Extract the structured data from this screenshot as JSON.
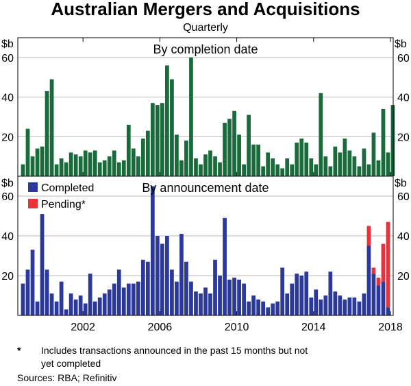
{
  "title": "Australian Mergers and Acquisitions",
  "subtitle": "Quarterly",
  "footnote": {
    "marker": "*",
    "line1": "Includes transactions announced in the past 15 months but not",
    "line2": "yet completed"
  },
  "sources": "Sources: RBA; Refinitiv",
  "colors": {
    "completion": "#1a6b3c",
    "completed": "#2b3a9a",
    "pending": "#e8323c",
    "grid": "#b9b9b9"
  },
  "chart_data": [
    {
      "type": "bar",
      "title": "By completion date",
      "ylabel": "$b",
      "ylim": [
        0,
        70
      ],
      "yticks": [
        20,
        40,
        60
      ],
      "x_start": 1998.75,
      "x_step": 0.25,
      "xticks": [
        2002,
        2006,
        2010,
        2014,
        2018
      ],
      "series": [
        {
          "name": "By completion date",
          "values": [
            6,
            24,
            10,
            14,
            15,
            43,
            49,
            6,
            9,
            7,
            12,
            11,
            10,
            13,
            12,
            13,
            7,
            8,
            10,
            13,
            7,
            8,
            26,
            14,
            10,
            19,
            23,
            37,
            36,
            37,
            56,
            49,
            21,
            8,
            18,
            60,
            9,
            6,
            11,
            13,
            10,
            7,
            27,
            29,
            33,
            21,
            6,
            31,
            16,
            16,
            5,
            12,
            9,
            6,
            4,
            9,
            6,
            17,
            19,
            17,
            9,
            6,
            42,
            10,
            5,
            15,
            12,
            19,
            13,
            10,
            5,
            14,
            6,
            22,
            8,
            34,
            12,
            36
          ]
        }
      ]
    },
    {
      "type": "bar",
      "stacked": true,
      "title": "By announcement date",
      "ylabel": "$b",
      "ylim": [
        0,
        70
      ],
      "yticks": [
        20,
        40,
        60
      ],
      "x_start": 1998.75,
      "x_step": 0.25,
      "xticks": [
        2002,
        2006,
        2010,
        2014,
        2018
      ],
      "legend": [
        "Completed",
        "Pending*"
      ],
      "series": [
        {
          "name": "Completed",
          "values": [
            16,
            23,
            33,
            7,
            51,
            23,
            11,
            7,
            17,
            3,
            11,
            8,
            10,
            6,
            21,
            7,
            9,
            11,
            13,
            16,
            23,
            14,
            16,
            16,
            17,
            28,
            27,
            65,
            40,
            36,
            40,
            23,
            17,
            41,
            27,
            17,
            12,
            11,
            14,
            11,
            28,
            20,
            49,
            18,
            19,
            18,
            16,
            7,
            10,
            8,
            7,
            4,
            6,
            7,
            24,
            11,
            16,
            21,
            20,
            22,
            9,
            13,
            8,
            10,
            22,
            12,
            10,
            8,
            9,
            9,
            7,
            11,
            35,
            21,
            15,
            17,
            4
          ]
        },
        {
          "name": "Pending*",
          "values": [
            0,
            0,
            0,
            0,
            0,
            0,
            0,
            0,
            0,
            0,
            0,
            0,
            0,
            0,
            0,
            0,
            0,
            0,
            0,
            0,
            0,
            0,
            0,
            0,
            0,
            0,
            0,
            0,
            0,
            0,
            0,
            0,
            0,
            0,
            0,
            0,
            0,
            0,
            0,
            0,
            0,
            0,
            0,
            0,
            0,
            0,
            0,
            0,
            0,
            0,
            0,
            0,
            0,
            0,
            0,
            0,
            0,
            0,
            0,
            0,
            0,
            0,
            0,
            0,
            0,
            0,
            0,
            0,
            0,
            0,
            0,
            0,
            10,
            3,
            4,
            19,
            43
          ]
        }
      ]
    }
  ]
}
